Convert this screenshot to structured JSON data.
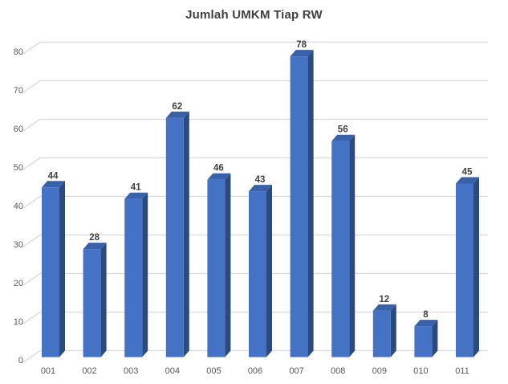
{
  "chart_data": {
    "type": "bar",
    "variant": "3d-column",
    "title": "Jumlah UMKM Tiap RW",
    "categories": [
      "001",
      "002",
      "003",
      "004",
      "005",
      "006",
      "007",
      "008",
      "009",
      "010",
      "011"
    ],
    "values": [
      44,
      28,
      41,
      62,
      46,
      43,
      78,
      56,
      12,
      8,
      45
    ],
    "data_labels": [
      44,
      28,
      41,
      62,
      46,
      43,
      78,
      56,
      12,
      8,
      45
    ],
    "yticks": [
      0,
      10,
      20,
      30,
      40,
      50,
      60,
      70,
      80
    ],
    "ylim": [
      0,
      80
    ],
    "xlabel": "",
    "ylabel": "",
    "grid": true,
    "legend_position": "none",
    "colors": {
      "bar_front": "#4472C4",
      "bar_top": "#3961A9",
      "bar_side": "#2B4B7E",
      "gridline": "#D9D9D9",
      "title_text": "#404040",
      "value_label_text": "#404040",
      "axis_text": "#595959",
      "background": "#FFFFFF"
    }
  }
}
